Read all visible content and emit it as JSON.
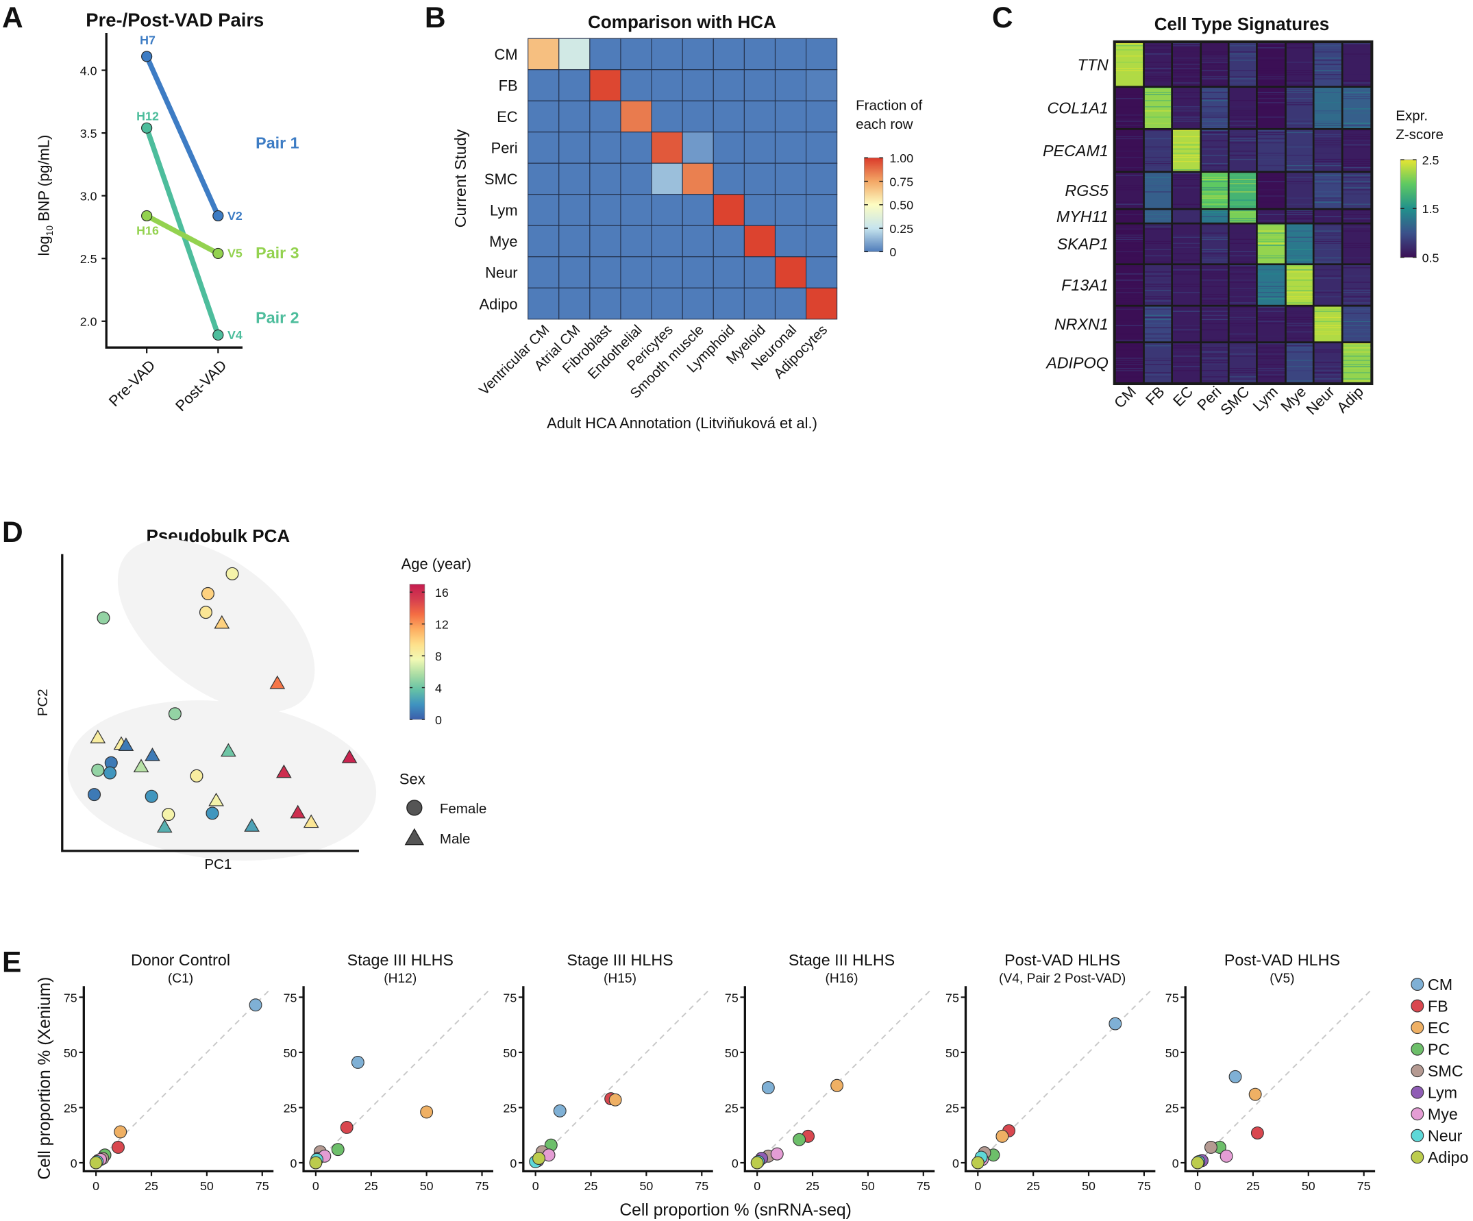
{
  "panel_letters": {
    "A": "A",
    "B": "B",
    "C": "C",
    "D": "D",
    "E": "E"
  },
  "chart_data": [
    {
      "type": "line",
      "title": "Pre-/Post-VAD Pairs",
      "ylabel_prefix": "log",
      "ylabel_sub": "10",
      "ylabel_suffix": " BNP (pg/mL)",
      "categories": [
        "Pre-VAD",
        "Post-VAD"
      ],
      "ylim": [
        1.79,
        4.3
      ],
      "yticks": [
        2.0,
        2.5,
        3.0,
        3.5,
        4.0
      ],
      "ytick_labels": [
        "2.0",
        "2.5",
        "3.0",
        "3.5",
        "4.0"
      ],
      "series": [
        {
          "name": "Pair 1",
          "color": "#3d7cc4",
          "point_labels": [
            "H7",
            "V2"
          ],
          "values": [
            4.11,
            2.84
          ]
        },
        {
          "name": "Pair 2",
          "color": "#4dbd9c",
          "point_labels": [
            "H12",
            "V4"
          ],
          "values": [
            3.54,
            1.89
          ]
        },
        {
          "name": "Pair 3",
          "color": "#93d24f",
          "point_labels": [
            "H16",
            "V5"
          ],
          "values": [
            2.84,
            2.54
          ]
        }
      ]
    },
    {
      "type": "heatmap",
      "title": "Comparison with HCA",
      "ylabel": "Current Study",
      "xlabel": "Adult HCA Annotation (Litviňuková et al.)",
      "rows": [
        "CM",
        "FB",
        "EC",
        "Peri",
        "SMC",
        "Lym",
        "Mye",
        "Neur",
        "Adipo"
      ],
      "columns": [
        "Ventricular CM",
        "Atrial CM",
        "Fibroblast",
        "Endothelial",
        "Pericytes",
        "Smooth muscle",
        "Lymphoid",
        "Myeloid",
        "Neuronal",
        "Adipocytes"
      ],
      "values": [
        [
          0.68,
          0.3,
          0,
          0,
          0,
          0,
          0,
          0,
          0,
          0
        ],
        [
          0,
          0,
          0.97,
          0,
          0,
          0,
          0,
          0,
          0,
          0.01
        ],
        [
          0,
          0,
          0,
          0.85,
          0,
          0,
          0,
          0,
          0,
          0
        ],
        [
          0,
          0,
          0,
          0,
          0.93,
          0.07,
          0,
          0,
          0,
          0
        ],
        [
          0,
          0,
          0,
          0,
          0.16,
          0.84,
          0,
          0,
          0,
          0
        ],
        [
          0,
          0,
          0,
          0,
          0,
          0,
          0.98,
          0,
          0,
          0
        ],
        [
          0,
          0,
          0,
          0,
          0,
          0,
          0,
          0.98,
          0,
          0
        ],
        [
          0,
          0,
          0,
          0,
          0,
          0,
          0,
          0,
          0.98,
          0
        ],
        [
          0,
          0,
          0,
          0,
          0,
          0,
          0,
          0,
          0,
          0.98
        ]
      ],
      "colorbar_title": [
        "Fraction of",
        "each row"
      ],
      "colorbar_ticks": [
        0,
        0.25,
        0.5,
        0.75,
        1.0
      ],
      "colorbar_tick_labels": [
        "0",
        "0.25",
        "0.50",
        "0.75",
        "1.00"
      ],
      "colorbar_range": [
        0,
        1
      ],
      "colormap": [
        "#4f7cba",
        "#c6e4ee",
        "#fdfdc2",
        "#f3a766",
        "#da3a2a"
      ]
    },
    {
      "type": "heatmap",
      "title": "Cell Type Signatures",
      "rows": [
        "TTN",
        "COL1A1",
        "PECAM1",
        "RGS5",
        "MYH11",
        "SKAP1",
        "F13A1",
        "NRXN1",
        "ADIPOQ"
      ],
      "columns": [
        "CM",
        "FB",
        "EC",
        "Peri",
        "SMC",
        "Lym",
        "Mye",
        "Neur",
        "Adip"
      ],
      "values": [
        [
          2.3,
          0.6,
          0.55,
          0.55,
          0.8,
          0.5,
          0.6,
          0.9,
          0.6
        ],
        [
          0.5,
          2.2,
          0.6,
          0.9,
          0.6,
          0.5,
          0.8,
          1.2,
          1.1
        ],
        [
          0.5,
          0.8,
          2.3,
          0.7,
          0.7,
          0.8,
          0.8,
          0.7,
          0.6
        ],
        [
          0.55,
          1.1,
          0.6,
          2.0,
          1.8,
          0.5,
          0.7,
          0.9,
          0.8
        ],
        [
          0.5,
          1.1,
          0.7,
          1.3,
          2.1,
          0.6,
          0.6,
          0.6,
          0.6
        ],
        [
          0.5,
          0.6,
          0.6,
          0.7,
          0.6,
          2.2,
          1.3,
          0.8,
          0.6
        ],
        [
          0.5,
          0.7,
          0.6,
          0.6,
          0.6,
          1.3,
          2.3,
          0.7,
          0.7
        ],
        [
          0.5,
          0.9,
          0.6,
          0.6,
          0.6,
          0.6,
          0.6,
          2.3,
          0.9
        ],
        [
          0.5,
          0.8,
          0.6,
          0.7,
          0.7,
          0.6,
          0.9,
          0.7,
          2.2
        ]
      ],
      "colorbar_title": [
        "Expr.",
        "Z-score"
      ],
      "colorbar_ticks": [
        0.5,
        1.5,
        2.5
      ],
      "colorbar_tick_labels": [
        "0.5",
        "1.5",
        "2.5"
      ],
      "colorbar_range": [
        0.5,
        2.5
      ],
      "colormap": [
        "#3b0f55",
        "#3b528b",
        "#21918c",
        "#5ec962",
        "#e6e532"
      ]
    },
    {
      "type": "scatter",
      "title": "Pseudobulk PCA",
      "xlabel": "PC1",
      "ylabel": "PC2",
      "xlim": [
        0,
        100
      ],
      "ylim": [
        0,
        100
      ],
      "color_legend_title": "Age (year)",
      "colorbar_ticks": [
        0,
        4,
        8,
        12,
        16
      ],
      "colorbar_tick_labels": [
        "0",
        "4",
        "8",
        "12",
        "16"
      ],
      "colorbar_range": [
        0,
        17
      ],
      "shape_legend_title": "Sex",
      "shape_legend": [
        {
          "label": "Female",
          "shape": "circle"
        },
        {
          "label": "Male",
          "shape": "triangle"
        }
      ],
      "points": [
        {
          "pc1": 57.3,
          "pc2": 93.4,
          "age": 8,
          "sex": "Female"
        },
        {
          "pc1": 49.1,
          "pc2": 86.7,
          "age": 10,
          "sex": "Female"
        },
        {
          "pc1": 48.4,
          "pc2": 80.4,
          "age": 9,
          "sex": "Female"
        },
        {
          "pc1": 13.9,
          "pc2": 78.5,
          "age": 5,
          "sex": "Female"
        },
        {
          "pc1": 53.8,
          "pc2": 76.6,
          "age": 10,
          "sex": "Male"
        },
        {
          "pc1": 72.5,
          "pc2": 56.3,
          "age": 13,
          "sex": "Male"
        },
        {
          "pc1": 38.0,
          "pc2": 46.2,
          "age": 5,
          "sex": "Female"
        },
        {
          "pc1": 12.0,
          "pc2": 38.0,
          "age": 8.5,
          "sex": "Male"
        },
        {
          "pc1": 19.9,
          "pc2": 35.8,
          "age": 8.5,
          "sex": "Male"
        },
        {
          "pc1": 21.5,
          "pc2": 35.4,
          "age": 1,
          "sex": "Male"
        },
        {
          "pc1": 30.4,
          "pc2": 32.0,
          "age": 1,
          "sex": "Male"
        },
        {
          "pc1": 56.0,
          "pc2": 33.5,
          "age": 4,
          "sex": "Male"
        },
        {
          "pc1": 96.8,
          "pc2": 31.3,
          "age": 16.5,
          "sex": "Male"
        },
        {
          "pc1": 16.5,
          "pc2": 29.7,
          "age": 1,
          "sex": "Female"
        },
        {
          "pc1": 12.0,
          "pc2": 27.2,
          "age": 5,
          "sex": "Female"
        },
        {
          "pc1": 16.1,
          "pc2": 26.3,
          "age": 2,
          "sex": "Female"
        },
        {
          "pc1": 26.6,
          "pc2": 28.2,
          "age": 6,
          "sex": "Male"
        },
        {
          "pc1": 45.3,
          "pc2": 25.3,
          "age": 8.5,
          "sex": "Female"
        },
        {
          "pc1": 74.7,
          "pc2": 26.3,
          "age": 16,
          "sex": "Male"
        },
        {
          "pc1": 10.8,
          "pc2": 19.0,
          "age": 1,
          "sex": "Female"
        },
        {
          "pc1": 30.1,
          "pc2": 18.4,
          "age": 2,
          "sex": "Female"
        },
        {
          "pc1": 51.9,
          "pc2": 16.8,
          "age": 8,
          "sex": "Male"
        },
        {
          "pc1": 35.8,
          "pc2": 12.3,
          "age": 8,
          "sex": "Female"
        },
        {
          "pc1": 50.6,
          "pc2": 12.7,
          "age": 2,
          "sex": "Female"
        },
        {
          "pc1": 79.4,
          "pc2": 12.7,
          "age": 16,
          "sex": "Male"
        },
        {
          "pc1": 83.9,
          "pc2": 9.5,
          "age": 9,
          "sex": "Male"
        },
        {
          "pc1": 34.5,
          "pc2": 7.9,
          "age": 3,
          "sex": "Male"
        },
        {
          "pc1": 63.9,
          "pc2": 8.2,
          "age": 2.5,
          "sex": "Male"
        }
      ]
    },
    {
      "type": "scatter",
      "xlabel": "Cell proportion % (snRNA-seq)",
      "ylabel": "Cell proportion % (Xenium)",
      "xlim": [
        -5.5,
        80
      ],
      "ylim": [
        -3.8,
        80
      ],
      "xticks": [
        0,
        25,
        50,
        75
      ],
      "yticks": [
        0,
        25,
        50,
        75
      ],
      "tick_labels": [
        "0",
        "25",
        "50",
        "75"
      ],
      "reference_line": "y = x (dashed)",
      "cell_types": [
        {
          "name": "CM",
          "color": "#7fb0d5"
        },
        {
          "name": "FB",
          "color": "#d9474f"
        },
        {
          "name": "EC",
          "color": "#efb064"
        },
        {
          "name": "PC",
          "color": "#6dbf6a"
        },
        {
          "name": "SMC",
          "color": "#b59a92"
        },
        {
          "name": "Lym",
          "color": "#8f5db5"
        },
        {
          "name": "Mye",
          "color": "#e49dd4"
        },
        {
          "name": "Neur",
          "color": "#5ed8d8"
        },
        {
          "name": "Adipo",
          "color": "#bccc4d"
        }
      ],
      "subplots": [
        {
          "title": "Donor Control",
          "subtitle": "(C1)",
          "points": [
            [
              72,
              71.5
            ],
            [
              10,
              7
            ],
            [
              11,
              14
            ],
            [
              4,
              3.5
            ],
            [
              3,
              2
            ],
            [
              1,
              1
            ],
            [
              2,
              1.5
            ],
            [
              0.5,
              0.5
            ],
            [
              0,
              0
            ]
          ]
        },
        {
          "title": "Stage III HLHS",
          "subtitle": "(H12)",
          "points": [
            [
              19,
              45.5
            ],
            [
              14,
              16
            ],
            [
              50,
              23
            ],
            [
              10,
              6
            ],
            [
              2,
              5
            ],
            [
              1,
              2
            ],
            [
              4,
              3
            ],
            [
              0.5,
              1.5
            ],
            [
              0,
              0
            ]
          ]
        },
        {
          "title": "Stage III HLHS",
          "subtitle": "(H15)",
          "points": [
            [
              11,
              23.5
            ],
            [
              34,
              29
            ],
            [
              36,
              28.5
            ],
            [
              7,
              8
            ],
            [
              3,
              5
            ],
            [
              1,
              1
            ],
            [
              6,
              3.5
            ],
            [
              0,
              0.5
            ],
            [
              1.5,
              2
            ]
          ]
        },
        {
          "title": "Stage III HLHS",
          "subtitle": "(H16)",
          "points": [
            [
              5,
              34
            ],
            [
              23,
              12
            ],
            [
              36,
              35
            ],
            [
              19,
              10.5
            ],
            [
              5,
              3
            ],
            [
              2,
              2
            ],
            [
              9,
              4
            ],
            [
              0.5,
              0.5
            ],
            [
              0,
              0
            ]
          ]
        },
        {
          "title": "Post-VAD HLHS",
          "subtitle": "(V4, Pair 2 Post-VAD)",
          "points": [
            [
              62,
              63
            ],
            [
              14,
              14.5
            ],
            [
              11,
              12
            ],
            [
              7,
              3.5
            ],
            [
              3,
              4.5
            ],
            [
              1,
              1
            ],
            [
              2,
              1.5
            ],
            [
              1.5,
              2.5
            ],
            [
              0,
              0
            ]
          ]
        },
        {
          "title": "Post-VAD HLHS",
          "subtitle": "(V5)",
          "points": [
            [
              17,
              39
            ],
            [
              27,
              13.5
            ],
            [
              26,
              31
            ],
            [
              10,
              7
            ],
            [
              6,
              7
            ],
            [
              2,
              1
            ],
            [
              13,
              3
            ],
            [
              0.5,
              0.5
            ],
            [
              0,
              0
            ]
          ]
        }
      ]
    }
  ]
}
